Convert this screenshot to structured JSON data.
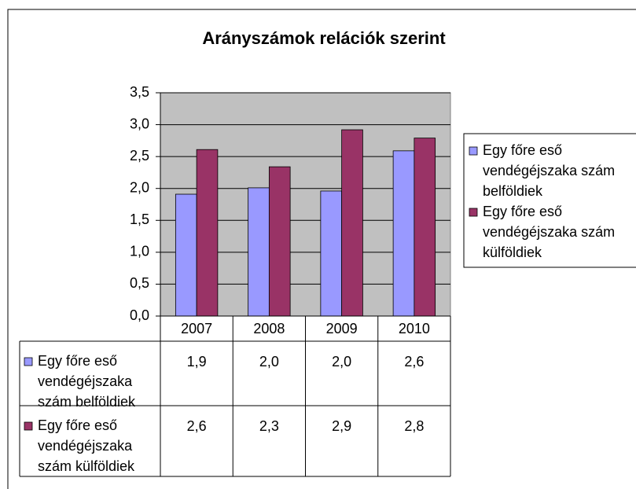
{
  "chart_data": {
    "type": "bar",
    "title": "Arányszámok relációk szerint",
    "categories": [
      "2007",
      "2008",
      "2009",
      "2010"
    ],
    "series": [
      {
        "name": "Egy főre eső vendégéjszaka szám belföldiek",
        "color": "#9999ff",
        "values": [
          1.91,
          2.01,
          1.96,
          2.59
        ],
        "value_labels": [
          "1,9",
          "2,0",
          "2,0",
          "2,6"
        ]
      },
      {
        "name": "Egy főre eső vendégéjszaka szám külföldiek",
        "color": "#993366",
        "values": [
          2.61,
          2.34,
          2.92,
          2.79
        ],
        "value_labels": [
          "2,6",
          "2,3",
          "2,9",
          "2,8"
        ]
      }
    ],
    "ylim": [
      0,
      3.5
    ],
    "yticks": [
      {
        "value": 0,
        "label": "0,0"
      },
      {
        "value": 0.5,
        "label": "0,5"
      },
      {
        "value": 1,
        "label": "1,0"
      },
      {
        "value": 1.5,
        "label": "1,5"
      },
      {
        "value": 2,
        "label": "2,0"
      },
      {
        "value": 2.5,
        "label": "2,5"
      },
      {
        "value": 3,
        "label": "3,0"
      },
      {
        "value": 3.5,
        "label": "3,5"
      }
    ],
    "grid": true,
    "plot_background": "#c0c0c0",
    "legend": "right"
  }
}
